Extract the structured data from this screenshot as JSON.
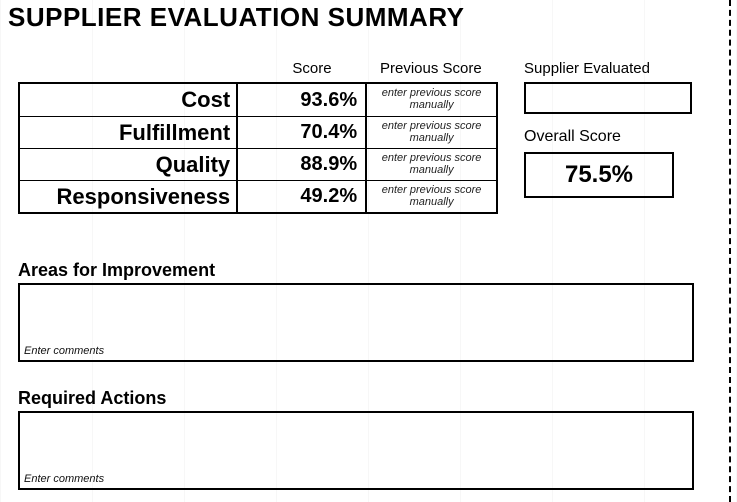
{
  "title": "SUPPLIER EVALUATION SUMMARY",
  "columns": {
    "score": "Score",
    "previous": "Previous Score",
    "supplier": "Supplier Evaluated"
  },
  "criteria": [
    {
      "name": "Cost",
      "score": "93.6%",
      "prev_placeholder": "enter previous score manually"
    },
    {
      "name": "Fulfillment",
      "score": "70.4%",
      "prev_placeholder": "enter previous score manually"
    },
    {
      "name": "Quality",
      "score": "88.9%",
      "prev_placeholder": "enter previous score manually"
    },
    {
      "name": "Responsiveness",
      "score": "49.2%",
      "prev_placeholder": "enter previous score manually"
    }
  ],
  "supplier_evaluated": "",
  "overall": {
    "label": "Overall Score",
    "value": "75.5%"
  },
  "sections": {
    "improvement": {
      "label": "Areas for Improvement",
      "placeholder": "Enter comments"
    },
    "actions": {
      "label": "Required Actions",
      "placeholder": "Enter comments"
    }
  },
  "style": {
    "border_color": "#000000",
    "background_color": "#ffffff",
    "grid_color": "#e8e8e8",
    "title_fontsize": 26,
    "criteria_fontsize": 22,
    "score_fontsize": 20,
    "placeholder_fontsize": 11,
    "overall_fontsize": 24
  }
}
